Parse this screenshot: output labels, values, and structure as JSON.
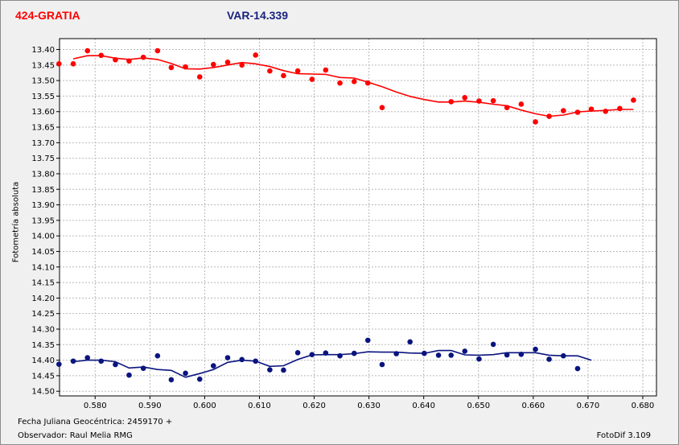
{
  "header": {
    "object_title": "424-GRATIA",
    "var_title": "VAR-14.339",
    "object_color": "#ff0000",
    "var_color": "#1a237e"
  },
  "footer": {
    "date_label": "Fecha Juliana Geocéntrica: 2459170 +",
    "observer_label": "Observador: Raul Melia RMG",
    "software": "FotoDif 3.109"
  },
  "chart_data": {
    "type": "scatter",
    "ylabel": "Fotometría absoluta",
    "xlim": [
      0.5735,
      0.6825
    ],
    "ylim": [
      14.515,
      13.365
    ],
    "y_inverted": true,
    "grid": true,
    "x_ticks": [
      "0.580",
      "0.590",
      "0.600",
      "0.610",
      "0.620",
      "0.630",
      "0.640",
      "0.650",
      "0.660",
      "0.670",
      "0.680"
    ],
    "x_tick_values": [
      0.58,
      0.59,
      0.6,
      0.61,
      0.62,
      0.63,
      0.64,
      0.65,
      0.66,
      0.67,
      0.68
    ],
    "y_ticks": [
      "13.40",
      "13.45",
      "13.50",
      "13.55",
      "13.60",
      "13.65",
      "13.70",
      "13.75",
      "13.80",
      "13.85",
      "13.90",
      "13.95",
      "14.00",
      "14.05",
      "14.10",
      "14.15",
      "14.20",
      "14.25",
      "14.30",
      "14.35",
      "14.40",
      "14.45",
      "14.50"
    ],
    "y_tick_values": [
      13.4,
      13.45,
      13.5,
      13.55,
      13.6,
      13.65,
      13.7,
      13.75,
      13.8,
      13.85,
      13.9,
      13.95,
      14.0,
      14.05,
      14.1,
      14.15,
      14.2,
      14.25,
      14.3,
      14.35,
      14.4,
      14.45,
      14.5
    ],
    "series": [
      {
        "name": "424-GRATIA",
        "color": "#ff0000",
        "points": [
          [
            0.5734,
            13.446
          ],
          [
            0.576,
            13.446
          ],
          [
            0.5786,
            13.404
          ],
          [
            0.5811,
            13.419
          ],
          [
            0.5837,
            13.433
          ],
          [
            0.5862,
            13.437
          ],
          [
            0.5888,
            13.425
          ],
          [
            0.5914,
            13.404
          ],
          [
            0.5939,
            13.458
          ],
          [
            0.5965,
            13.456
          ],
          [
            0.5991,
            13.488
          ],
          [
            0.6016,
            13.448
          ],
          [
            0.6042,
            13.441
          ],
          [
            0.6068,
            13.45
          ],
          [
            0.6093,
            13.418
          ],
          [
            0.6119,
            13.469
          ],
          [
            0.6144,
            13.484
          ],
          [
            0.617,
            13.469
          ],
          [
            0.6196,
            13.496
          ],
          [
            0.6221,
            13.466
          ],
          [
            0.6247,
            13.508
          ],
          [
            0.6273,
            13.503
          ],
          [
            0.6298,
            13.508
          ],
          [
            0.6324,
            13.587
          ],
          [
            0.645,
            13.568
          ],
          [
            0.6475,
            13.555
          ],
          [
            0.6501,
            13.566
          ],
          [
            0.6527,
            13.565
          ],
          [
            0.6552,
            13.587
          ],
          [
            0.6578,
            13.576
          ],
          [
            0.6604,
            13.633
          ],
          [
            0.6629,
            13.615
          ],
          [
            0.6655,
            13.597
          ],
          [
            0.6681,
            13.602
          ],
          [
            0.6706,
            13.592
          ],
          [
            0.6732,
            13.599
          ],
          [
            0.6758,
            13.59
          ],
          [
            0.6783,
            13.563
          ]
        ],
        "trend": [
          [
            0.576,
            13.43
          ],
          [
            0.5786,
            13.42
          ],
          [
            0.5811,
            13.42
          ],
          [
            0.5837,
            13.428
          ],
          [
            0.5862,
            13.432
          ],
          [
            0.5888,
            13.427
          ],
          [
            0.5914,
            13.432
          ],
          [
            0.5939,
            13.445
          ],
          [
            0.5965,
            13.462
          ],
          [
            0.5991,
            13.463
          ],
          [
            0.6016,
            13.458
          ],
          [
            0.6042,
            13.45
          ],
          [
            0.6068,
            13.442
          ],
          [
            0.6093,
            13.446
          ],
          [
            0.6119,
            13.455
          ],
          [
            0.6144,
            13.468
          ],
          [
            0.617,
            13.478
          ],
          [
            0.6196,
            13.479
          ],
          [
            0.6221,
            13.48
          ],
          [
            0.6247,
            13.49
          ],
          [
            0.6273,
            13.492
          ],
          [
            0.6298,
            13.505
          ],
          [
            0.6324,
            13.52
          ],
          [
            0.635,
            13.537
          ],
          [
            0.6375,
            13.551
          ],
          [
            0.6401,
            13.561
          ],
          [
            0.6427,
            13.569
          ],
          [
            0.645,
            13.569
          ],
          [
            0.6475,
            13.566
          ],
          [
            0.6501,
            13.57
          ],
          [
            0.6527,
            13.576
          ],
          [
            0.6552,
            13.581
          ],
          [
            0.6578,
            13.595
          ],
          [
            0.6604,
            13.607
          ],
          [
            0.6629,
            13.615
          ],
          [
            0.6655,
            13.611
          ],
          [
            0.6681,
            13.601
          ],
          [
            0.6706,
            13.598
          ],
          [
            0.6732,
            13.596
          ],
          [
            0.6758,
            13.593
          ],
          [
            0.6783,
            13.593
          ]
        ]
      },
      {
        "name": "VAR-14.339",
        "color": "#0a147f",
        "points": [
          [
            0.5734,
            14.413
          ],
          [
            0.576,
            14.403
          ],
          [
            0.5786,
            14.392
          ],
          [
            0.5811,
            14.403
          ],
          [
            0.5837,
            14.414
          ],
          [
            0.5862,
            14.448
          ],
          [
            0.5888,
            14.426
          ],
          [
            0.5914,
            14.386
          ],
          [
            0.5939,
            14.463
          ],
          [
            0.5965,
            14.442
          ],
          [
            0.5991,
            14.461
          ],
          [
            0.6016,
            14.418
          ],
          [
            0.6042,
            14.392
          ],
          [
            0.6068,
            14.398
          ],
          [
            0.6093,
            14.403
          ],
          [
            0.6119,
            14.431
          ],
          [
            0.6144,
            14.432
          ],
          [
            0.617,
            14.376
          ],
          [
            0.6196,
            14.382
          ],
          [
            0.6221,
            14.377
          ],
          [
            0.6247,
            14.386
          ],
          [
            0.6273,
            14.378
          ],
          [
            0.6298,
            14.336
          ],
          [
            0.6324,
            14.414
          ],
          [
            0.635,
            14.379
          ],
          [
            0.6375,
            14.341
          ],
          [
            0.6401,
            14.378
          ],
          [
            0.6427,
            14.384
          ],
          [
            0.645,
            14.384
          ],
          [
            0.6475,
            14.371
          ],
          [
            0.6501,
            14.396
          ],
          [
            0.6527,
            14.349
          ],
          [
            0.6552,
            14.383
          ],
          [
            0.6578,
            14.381
          ],
          [
            0.6604,
            14.365
          ],
          [
            0.6629,
            14.397
          ],
          [
            0.6655,
            14.386
          ],
          [
            0.6681,
            14.427
          ]
        ],
        "trend": [
          [
            0.576,
            14.405
          ],
          [
            0.5786,
            14.4
          ],
          [
            0.5811,
            14.4
          ],
          [
            0.5837,
            14.405
          ],
          [
            0.5862,
            14.425
          ],
          [
            0.5888,
            14.422
          ],
          [
            0.5914,
            14.43
          ],
          [
            0.5939,
            14.433
          ],
          [
            0.5965,
            14.455
          ],
          [
            0.5991,
            14.443
          ],
          [
            0.6016,
            14.43
          ],
          [
            0.6042,
            14.407
          ],
          [
            0.6068,
            14.4
          ],
          [
            0.6093,
            14.403
          ],
          [
            0.6119,
            14.42
          ],
          [
            0.6144,
            14.418
          ],
          [
            0.617,
            14.398
          ],
          [
            0.6196,
            14.383
          ],
          [
            0.6221,
            14.382
          ],
          [
            0.6247,
            14.382
          ],
          [
            0.6273,
            14.379
          ],
          [
            0.6298,
            14.373
          ],
          [
            0.6324,
            14.374
          ],
          [
            0.635,
            14.374
          ],
          [
            0.6375,
            14.377
          ],
          [
            0.6401,
            14.378
          ],
          [
            0.6427,
            14.369
          ],
          [
            0.645,
            14.369
          ],
          [
            0.6475,
            14.383
          ],
          [
            0.6501,
            14.384
          ],
          [
            0.6527,
            14.382
          ],
          [
            0.6552,
            14.376
          ],
          [
            0.6578,
            14.376
          ],
          [
            0.6604,
            14.376
          ],
          [
            0.6629,
            14.384
          ],
          [
            0.6655,
            14.386
          ],
          [
            0.6681,
            14.386
          ],
          [
            0.6706,
            14.4
          ]
        ]
      }
    ]
  }
}
